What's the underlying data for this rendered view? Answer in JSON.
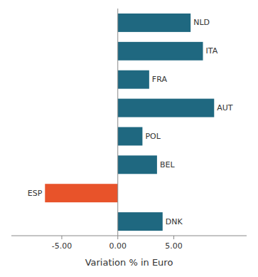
{
  "chart_data": {
    "type": "bar",
    "orientation": "horizontal",
    "categories": [
      "DNK",
      "ESP",
      "BEL",
      "POL",
      "AUT",
      "FRA",
      "ITA",
      "NLD"
    ],
    "values": [
      4.0,
      -6.5,
      3.5,
      2.2,
      8.6,
      2.8,
      7.6,
      6.5
    ],
    "colors": [
      "#1f6880",
      "#e8532a",
      "#1f6880",
      "#1f6880",
      "#1f6880",
      "#1f6880",
      "#1f6880",
      "#1f6880"
    ],
    "xlabel": "Variation % in Euro",
    "xlim": [
      -9.5,
      11.5
    ],
    "xticks": [
      {
        "value": -5.0,
        "label": "-5.00"
      },
      {
        "value": 0.0,
        "label": "0.00"
      },
      {
        "value": 5.0,
        "label": "5.00"
      }
    ],
    "tick_labels": "x",
    "grid": false
  }
}
